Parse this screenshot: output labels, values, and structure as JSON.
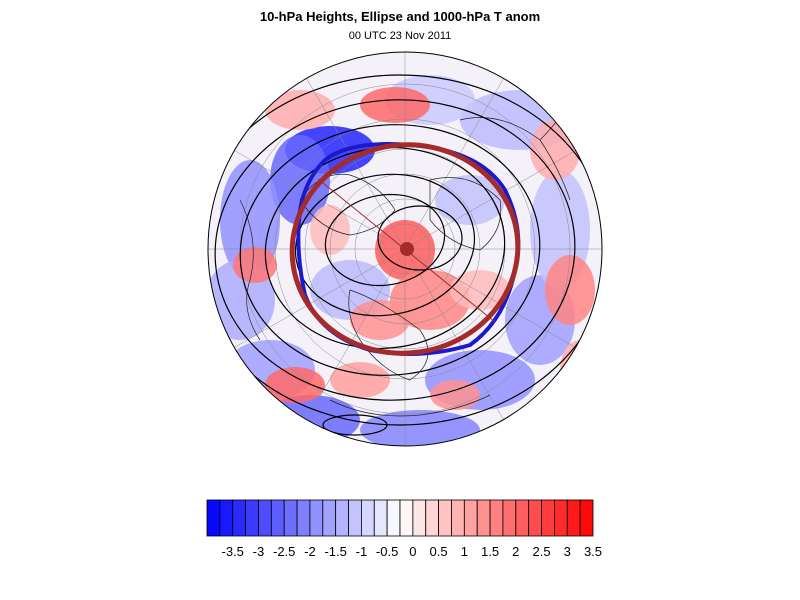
{
  "figure": {
    "title": "10-hPa Heights, Ellipse and 1000-hPa T anom",
    "subtitle": "00 UTC 23 Nov 2011"
  },
  "colors": {
    "negative_max": "#0000ff",
    "positive_max": "#ff0000",
    "ellipse_fit": "#a52a2a",
    "contour_edge": "#1a1acc",
    "contour_line": "#000000"
  },
  "colorbar": {
    "levels": [
      -3.75,
      -3.5,
      -3.25,
      -3,
      -2.75,
      -2.5,
      -2.25,
      -2,
      -1.75,
      -1.5,
      -1.25,
      -1,
      -0.75,
      -0.5,
      -0.25,
      0,
      0.25,
      0.5,
      0.75,
      1,
      1.25,
      1.5,
      1.75,
      2,
      2.25,
      2.5,
      2.75,
      3,
      3.25,
      3.5,
      3.75
    ],
    "labels": [
      "-3.5",
      "-3",
      "-2.5",
      "-2",
      "-1.5",
      "-1",
      "-0.5",
      "0",
      "0.5",
      "1",
      "1.5",
      "2",
      "2.5",
      "3",
      "3.5"
    ]
  },
  "map": {
    "projection": "polar stereographic",
    "hemisphere": "northern",
    "field": "1000-hPa T anom",
    "overlay": "10-hPa Heights"
  }
}
